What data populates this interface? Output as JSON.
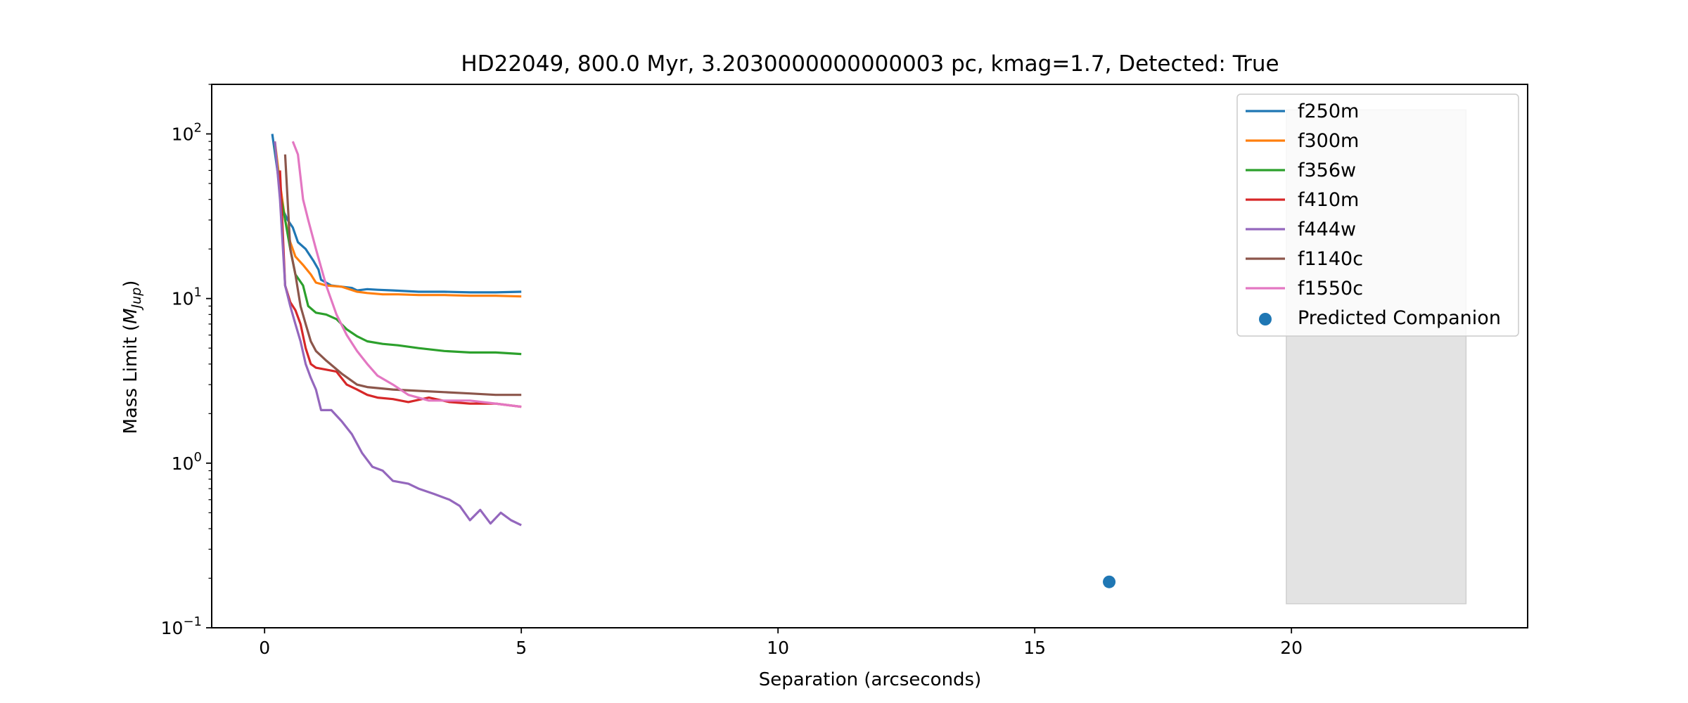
{
  "chart_data": {
    "type": "line",
    "title": "HD22049, 800.0 Myr, 3.2030000000000003 pc, kmag=1.7, Detected: True",
    "xlabel": "Separation (arcseconds)",
    "ylabel_main": "Mass Limit (",
    "ylabel_italic": "M",
    "ylabel_sub": "Jup",
    "ylabel_close": ")",
    "xlim": [
      -1.03,
      24.6
    ],
    "ylim": [
      0.1,
      200
    ],
    "yscale": "log",
    "x_ticks": [
      0,
      5,
      10,
      15,
      20
    ],
    "x_tick_labels": [
      "0",
      "5",
      "10",
      "15",
      "20"
    ],
    "y_ticks": [
      {
        "value": 100,
        "base": "10",
        "exp": "2"
      },
      {
        "value": 10,
        "base": "10",
        "exp": "1"
      },
      {
        "value": 1,
        "base": "10",
        "exp": "0"
      },
      {
        "value": 0.1,
        "base": "10",
        "exp": "−1"
      }
    ],
    "legend_position": "upper right",
    "series": [
      {
        "name": "f250m",
        "color": "#1f77b4",
        "points": [
          [
            0.15,
            100
          ],
          [
            0.25,
            60
          ],
          [
            0.35,
            35
          ],
          [
            0.45,
            30
          ],
          [
            0.55,
            27
          ],
          [
            0.65,
            22
          ],
          [
            0.8,
            20
          ],
          [
            0.95,
            17
          ],
          [
            1.05,
            15
          ],
          [
            1.1,
            13
          ],
          [
            1.3,
            12
          ],
          [
            1.5,
            11.8
          ],
          [
            1.7,
            11.6
          ],
          [
            1.8,
            11.2
          ],
          [
            2.0,
            11.4
          ],
          [
            2.2,
            11.3
          ],
          [
            2.5,
            11.2
          ],
          [
            3.0,
            11.0
          ],
          [
            3.5,
            11.0
          ],
          [
            4.0,
            10.9
          ],
          [
            4.5,
            10.9
          ],
          [
            5.0,
            11.0
          ]
        ]
      },
      {
        "name": "f300m",
        "color": "#ff7f0e",
        "points": [
          [
            0.2,
            90
          ],
          [
            0.3,
            50
          ],
          [
            0.4,
            30
          ],
          [
            0.5,
            22
          ],
          [
            0.6,
            18
          ],
          [
            0.75,
            16
          ],
          [
            0.9,
            14
          ],
          [
            1.0,
            12.5
          ],
          [
            1.2,
            12.0
          ],
          [
            1.5,
            11.8
          ],
          [
            1.8,
            11.0
          ],
          [
            2.0,
            10.8
          ],
          [
            2.3,
            10.6
          ],
          [
            2.6,
            10.6
          ],
          [
            3.0,
            10.5
          ],
          [
            3.5,
            10.5
          ],
          [
            4.0,
            10.4
          ],
          [
            4.5,
            10.4
          ],
          [
            5.0,
            10.3
          ]
        ]
      },
      {
        "name": "f356w",
        "color": "#2ca02c",
        "points": [
          [
            0.2,
            85
          ],
          [
            0.3,
            45
          ],
          [
            0.4,
            30
          ],
          [
            0.5,
            20
          ],
          [
            0.6,
            14
          ],
          [
            0.75,
            12
          ],
          [
            0.85,
            9
          ],
          [
            1.0,
            8.2
          ],
          [
            1.2,
            8.0
          ],
          [
            1.4,
            7.5
          ],
          [
            1.6,
            6.5
          ],
          [
            1.8,
            5.9
          ],
          [
            2.0,
            5.5
          ],
          [
            2.3,
            5.3
          ],
          [
            2.6,
            5.2
          ],
          [
            3.0,
            5.0
          ],
          [
            3.5,
            4.8
          ],
          [
            4.0,
            4.7
          ],
          [
            4.5,
            4.7
          ],
          [
            5.0,
            4.6
          ]
        ]
      },
      {
        "name": "f410m",
        "color": "#d62728",
        "points": [
          [
            0.3,
            60
          ],
          [
            0.4,
            12
          ],
          [
            0.5,
            9.5
          ],
          [
            0.6,
            8.5
          ],
          [
            0.7,
            7
          ],
          [
            0.8,
            5
          ],
          [
            0.9,
            4
          ],
          [
            1.0,
            3.8
          ],
          [
            1.2,
            3.7
          ],
          [
            1.4,
            3.6
          ],
          [
            1.6,
            3.0
          ],
          [
            1.8,
            2.8
          ],
          [
            2.0,
            2.6
          ],
          [
            2.2,
            2.5
          ],
          [
            2.5,
            2.45
          ],
          [
            2.8,
            2.35
          ],
          [
            3.2,
            2.5
          ],
          [
            3.6,
            2.35
          ],
          [
            4.0,
            2.3
          ],
          [
            4.5,
            2.3
          ],
          [
            5.0,
            2.2
          ]
        ]
      },
      {
        "name": "f444w",
        "color": "#9467bd",
        "points": [
          [
            0.2,
            90
          ],
          [
            0.3,
            40
          ],
          [
            0.4,
            12
          ],
          [
            0.5,
            9
          ],
          [
            0.6,
            7
          ],
          [
            0.7,
            5.5
          ],
          [
            0.8,
            4
          ],
          [
            0.9,
            3.3
          ],
          [
            1.0,
            2.8
          ],
          [
            1.1,
            2.1
          ],
          [
            1.3,
            2.1
          ],
          [
            1.5,
            1.8
          ],
          [
            1.7,
            1.5
          ],
          [
            1.9,
            1.15
          ],
          [
            2.1,
            0.95
          ],
          [
            2.3,
            0.9
          ],
          [
            2.5,
            0.78
          ],
          [
            2.8,
            0.75
          ],
          [
            3.0,
            0.7
          ],
          [
            3.3,
            0.65
          ],
          [
            3.6,
            0.6
          ],
          [
            3.8,
            0.55
          ],
          [
            4.0,
            0.45
          ],
          [
            4.2,
            0.52
          ],
          [
            4.4,
            0.43
          ],
          [
            4.6,
            0.5
          ],
          [
            4.8,
            0.45
          ],
          [
            5.0,
            0.42
          ]
        ]
      },
      {
        "name": "f1140c",
        "color": "#8c564b",
        "points": [
          [
            0.4,
            75
          ],
          [
            0.5,
            20
          ],
          [
            0.6,
            14
          ],
          [
            0.7,
            9
          ],
          [
            0.8,
            7
          ],
          [
            0.9,
            5.5
          ],
          [
            1.0,
            4.8
          ],
          [
            1.2,
            4.2
          ],
          [
            1.5,
            3.5
          ],
          [
            1.8,
            3.0
          ],
          [
            2.0,
            2.9
          ],
          [
            2.5,
            2.8
          ],
          [
            3.0,
            2.75
          ],
          [
            3.5,
            2.7
          ],
          [
            4.0,
            2.65
          ],
          [
            4.5,
            2.6
          ],
          [
            5.0,
            2.6
          ]
        ]
      },
      {
        "name": "f1550c",
        "color": "#e377c2",
        "points": [
          [
            0.55,
            90
          ],
          [
            0.65,
            75
          ],
          [
            0.75,
            40
          ],
          [
            0.85,
            30
          ],
          [
            1.0,
            20
          ],
          [
            1.2,
            12
          ],
          [
            1.4,
            8
          ],
          [
            1.6,
            6
          ],
          [
            1.8,
            4.8
          ],
          [
            2.0,
            4.0
          ],
          [
            2.2,
            3.4
          ],
          [
            2.5,
            3.0
          ],
          [
            2.8,
            2.6
          ],
          [
            3.2,
            2.4
          ],
          [
            3.6,
            2.4
          ],
          [
            4.0,
            2.4
          ],
          [
            4.5,
            2.3
          ],
          [
            5.0,
            2.2
          ]
        ]
      }
    ],
    "scatter": {
      "name": "Predicted Companion",
      "color": "#1f77b4",
      "x": 16.45,
      "y": 0.19
    },
    "shaded_region": {
      "x0": 19.9,
      "x1": 23.4,
      "y0": 0.14,
      "y1": 140,
      "color": "#e3e3e3"
    }
  }
}
